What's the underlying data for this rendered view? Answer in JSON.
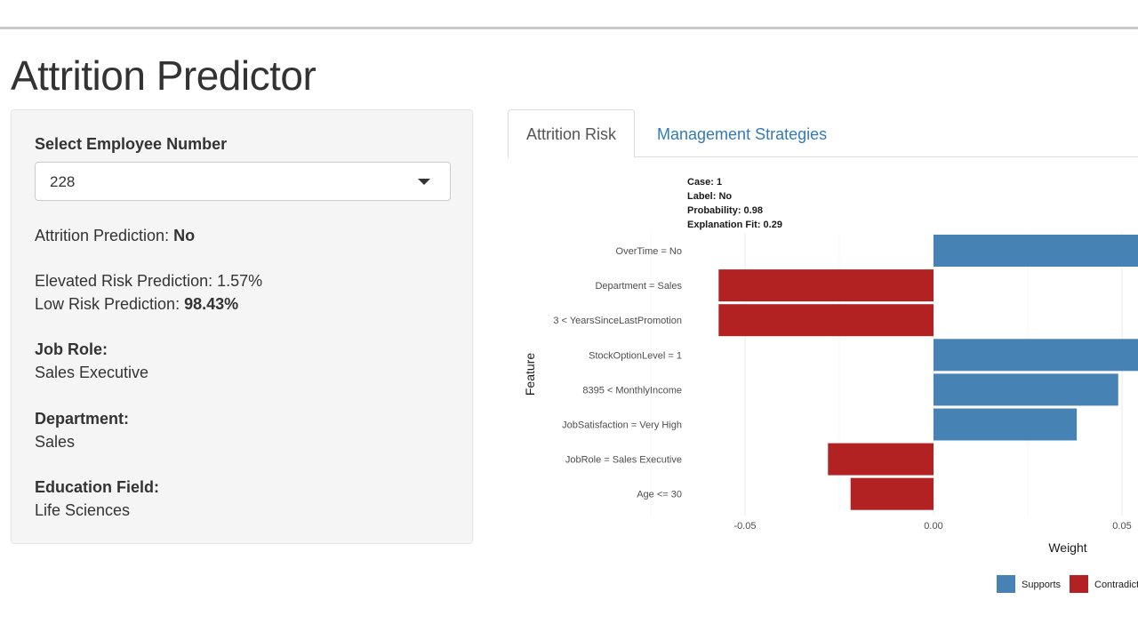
{
  "app": {
    "title": "Attrition Predictor"
  },
  "sidebar": {
    "select_label": "Select Employee Number",
    "selected_employee": "228",
    "prediction_prefix": "Attrition Prediction: ",
    "prediction_value": "No",
    "elevated_label": "Elevated Risk Prediction: ",
    "elevated_value": "1.57%",
    "low_label": "Low Risk Prediction: ",
    "low_value": "98.43%",
    "job_role_label": "Job Role:",
    "job_role_value": "Sales Executive",
    "department_label": "Department:",
    "department_value": "Sales",
    "education_label": "Education Field:",
    "education_value": "Life Sciences"
  },
  "tabs": [
    {
      "label": "Attrition Risk",
      "active": true
    },
    {
      "label": "Management Strategies",
      "active": false
    }
  ],
  "chart_data": {
    "type": "bar",
    "orientation": "horizontal",
    "case_lines": [
      "Case: 1",
      "Label: No",
      "Probability: 0.98",
      "Explanation Fit: 0.29"
    ],
    "categories": [
      "OverTime = No",
      "Department = Sales",
      "3 < YearsSinceLastPromotion",
      "StockOptionLevel = 1",
      "8395 < MonthlyIncome",
      "JobSatisfaction = Very High",
      "JobRole = Sales Executive",
      "Age <= 30"
    ],
    "values": [
      0.07,
      -0.057,
      -0.057,
      0.066,
      0.049,
      0.038,
      -0.028,
      -0.022
    ],
    "xlabel": "Weight",
    "ylabel": "Feature",
    "x_ticks": [
      -0.05,
      0.0,
      0.05
    ],
    "x_tick_labels": [
      "-0.05",
      "0.00",
      "0.05"
    ],
    "xlim": [
      -0.065,
      0.055
    ],
    "grid": true,
    "legend_placement": "bottom",
    "legend": [
      {
        "name": "Supports",
        "color": "#4682b4"
      },
      {
        "name": "Contradicts",
        "color": "#b22222"
      }
    ],
    "colors": {
      "supports": "#4682b4",
      "contradicts": "#b22222"
    }
  }
}
